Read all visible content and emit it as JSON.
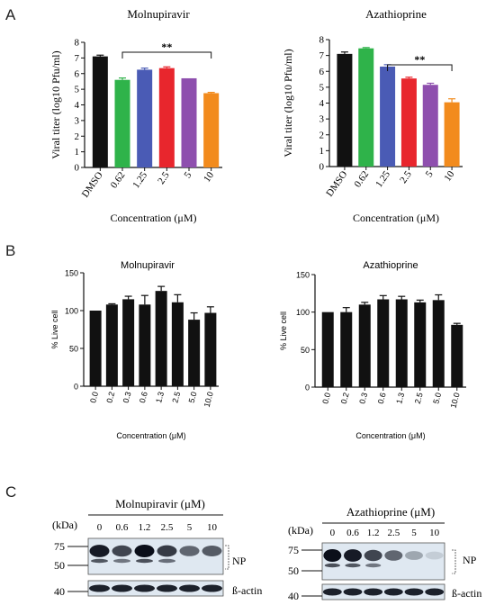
{
  "panel_labels": [
    "A",
    "B",
    "C"
  ],
  "chart_data": [
    {
      "panel": "A",
      "type": "bar",
      "title": "Molnupiravir",
      "ylabel": "Viral titer (log10 Pfu/ml)",
      "xlabel": "Concentration (μM)",
      "categories": [
        "DMSO",
        "0.62",
        "1.25",
        "2.5",
        "5",
        "10"
      ],
      "values": [
        7.1,
        5.6,
        6.25,
        6.35,
        5.7,
        4.75
      ],
      "errors": [
        0.08,
        0.12,
        0.1,
        0.08,
        0.0,
        0.05
      ],
      "colors": [
        "#111111",
        "#2fb34a",
        "#4a5bb5",
        "#e8262d",
        "#8e4fae",
        "#f28b1d"
      ],
      "ylim": [
        0,
        8
      ],
      "yticks": [
        "0",
        "1",
        "2",
        "3",
        "4",
        "5",
        "6",
        "7",
        "8"
      ],
      "significance": {
        "label": "**",
        "from": 1,
        "to": 5
      }
    },
    {
      "panel": "A",
      "type": "bar",
      "title": "Azathioprine",
      "ylabel": "Viral titer (log10 Pfu/ml)",
      "xlabel": "Concentration (μM)",
      "categories": [
        "DMSO",
        "0.62",
        "1.25",
        "2.5",
        "5",
        "10"
      ],
      "values": [
        7.1,
        7.45,
        6.3,
        5.55,
        5.15,
        4.05
      ],
      "errors": [
        0.12,
        0.05,
        0.12,
        0.08,
        0.1,
        0.22
      ],
      "colors": [
        "#111111",
        "#2fb34a",
        "#4a5bb5",
        "#e8262d",
        "#8e4fae",
        "#f28b1d"
      ],
      "ylim": [
        0,
        8
      ],
      "yticks": [
        "0",
        "1",
        "2",
        "3",
        "4",
        "5",
        "6",
        "7",
        "8"
      ],
      "significance": {
        "label": "**",
        "from": 2,
        "to": 5
      }
    },
    {
      "panel": "B",
      "type": "bar",
      "title": "Molnupiravir",
      "ylabel": "% Live cell",
      "xlabel": "Concentration (μM)",
      "categories": [
        "0.0",
        "0.2",
        "0.3",
        "0.6",
        "1.3",
        "2.5",
        "5.0",
        "10.0"
      ],
      "values": [
        100,
        108,
        115,
        108,
        126,
        111,
        88,
        97
      ],
      "errors": [
        0,
        1,
        4,
        12,
        6,
        10,
        9,
        8
      ],
      "colors": [
        "#111111"
      ],
      "ylim": [
        0,
        150
      ],
      "yticks": [
        "0",
        "50",
        "100",
        "150"
      ]
    },
    {
      "panel": "B",
      "type": "bar",
      "title": "Azathioprine",
      "ylabel": "% Live cell",
      "xlabel": "Concentration (μM)",
      "categories": [
        "0.0",
        "0.2",
        "0.3",
        "0.6",
        "1.3",
        "2.5",
        "5.0",
        "10.0"
      ],
      "values": [
        100,
        100,
        110,
        117,
        117,
        113,
        116,
        83
      ],
      "errors": [
        0,
        6,
        3,
        5,
        4,
        3,
        7,
        2
      ],
      "colors": [
        "#111111"
      ],
      "ylim": [
        0,
        150
      ],
      "yticks": [
        "0",
        "50",
        "100",
        "150"
      ]
    }
  ],
  "blots": [
    {
      "title": "Molnupiravir (μM)",
      "kda_label": "(kDa)",
      "concentrations": [
        "0",
        "0.6",
        "1.2",
        "2.5",
        "5",
        "10"
      ],
      "markers": [
        "75",
        "50",
        "40"
      ],
      "np_label": "NP",
      "actin_label": "ß-actin",
      "np_band_intensity": [
        0.95,
        0.75,
        1.0,
        0.8,
        0.6,
        0.65
      ]
    },
    {
      "title": "Azathioprine (μM)",
      "kda_label": "(kDa)",
      "concentrations": [
        "0",
        "0.6",
        "1.2",
        "2.5",
        "5",
        "10"
      ],
      "markers": [
        "75",
        "50",
        "40"
      ],
      "np_label": "NP",
      "actin_label": "ß-actin",
      "np_band_intensity": [
        1.0,
        0.95,
        0.75,
        0.6,
        0.3,
        0.12
      ]
    }
  ]
}
